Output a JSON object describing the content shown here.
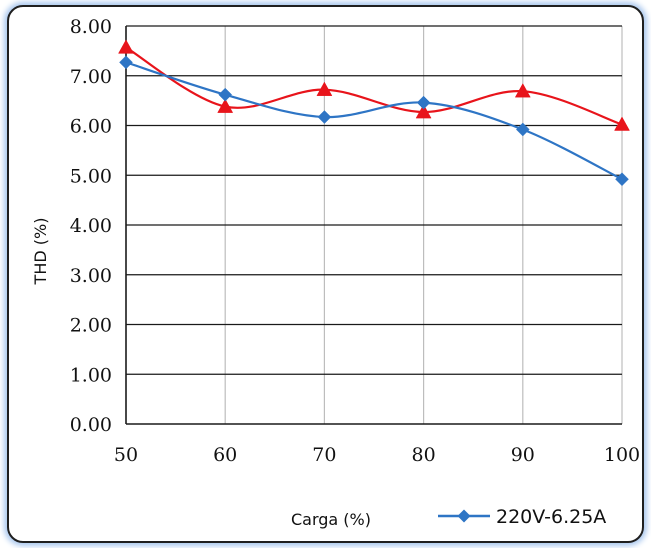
{
  "chart_data": {
    "type": "line",
    "xlabel": "Carga (%)",
    "ylabel": "THD (%)",
    "x": [
      50,
      60,
      70,
      80,
      90,
      100
    ],
    "x_tick_labels": [
      "50",
      "60",
      "70",
      "80",
      "90",
      "100"
    ],
    "ylim": [
      0,
      8
    ],
    "y_tick_labels": [
      "0.00",
      "1.00",
      "2.00",
      "3.00",
      "4.00",
      "5.00",
      "6.00",
      "7.00",
      "8.00"
    ],
    "grid": true,
    "legend_position": "bottom-right",
    "series": [
      {
        "name": "220V-6.25A",
        "color": "#2e75c5",
        "marker": "diamond",
        "values": [
          7.27,
          6.62,
          6.17,
          6.46,
          5.92,
          4.92
        ]
      },
      {
        "name": "",
        "color": "#e8141b",
        "marker": "triangle",
        "values": [
          7.57,
          6.38,
          6.72,
          6.27,
          6.69,
          6.02
        ]
      }
    ]
  }
}
